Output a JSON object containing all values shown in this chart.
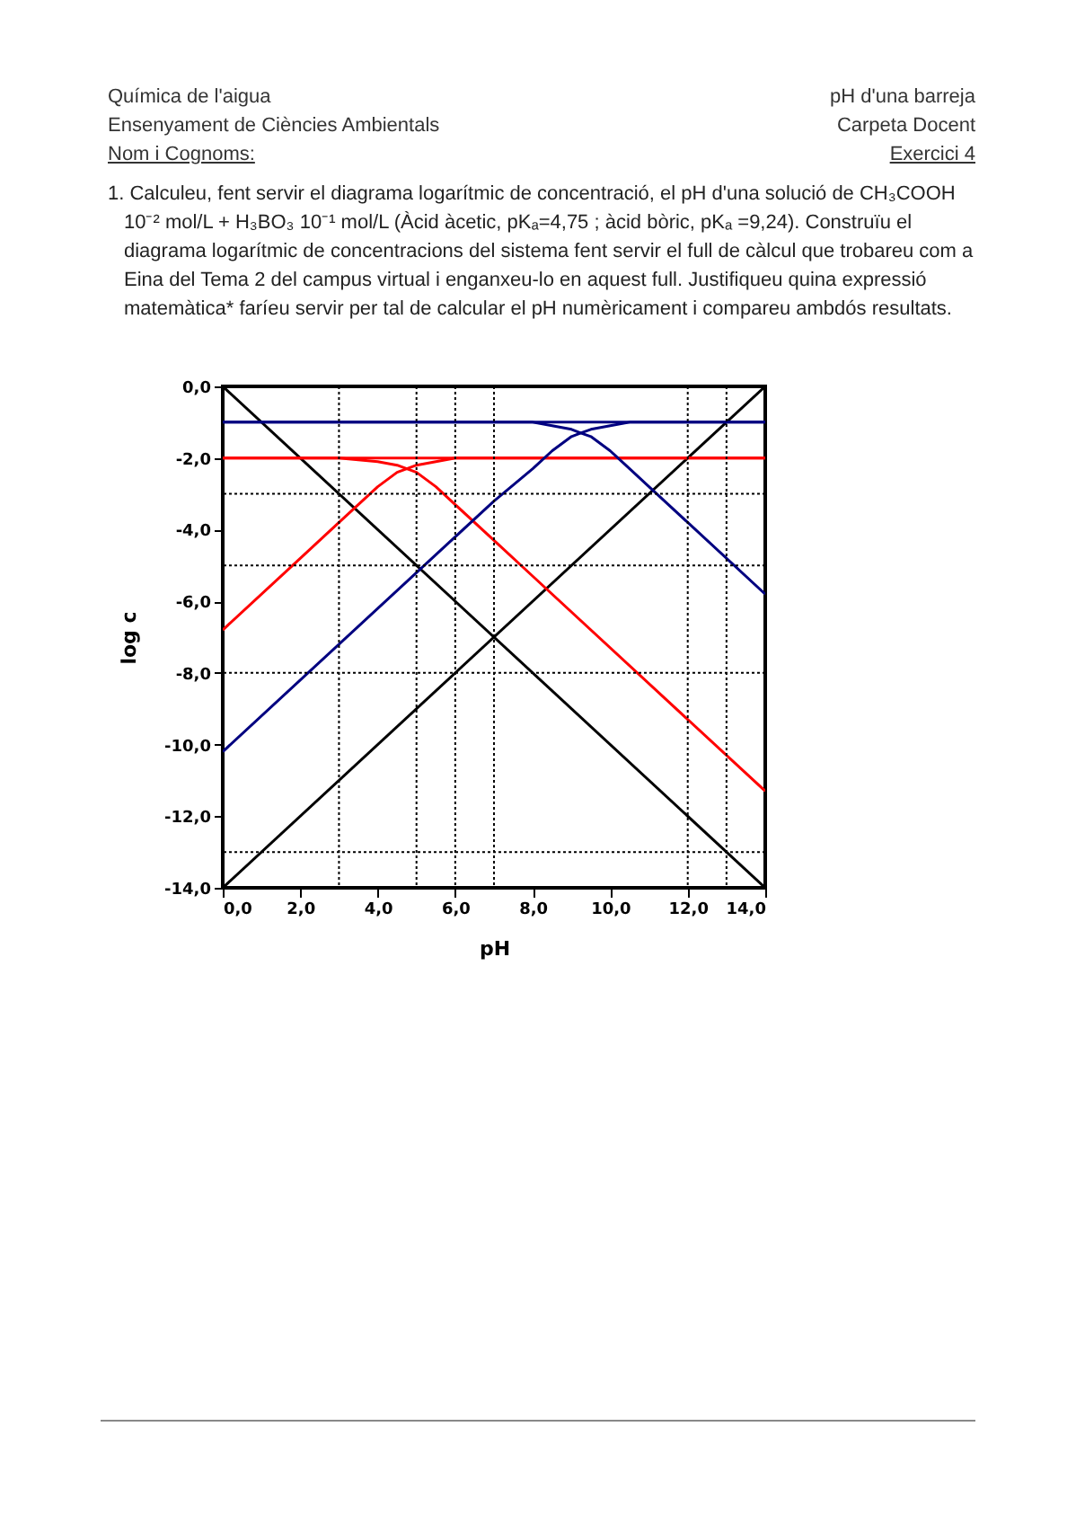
{
  "chart_data": {
    "type": "line",
    "xlabel": "pH",
    "ylabel": "log c",
    "line_style": "solid",
    "annotations": [
      "Química de l'aigua",
      "Ensenyament de Ciències Ambientals",
      "Nom i Cognoms:",
      "pH d'una barreja",
      "Carpeta Docent",
      "Exercici 4",
      "1. Calculeu, fent servir el diagrama logarítmic de concentració, el pH d'una solució de CH₃COOH 10⁻² mol/L + H₃BO₃ 10⁻¹ mol/L (Àcid àcetic, pKₐ=4,75 ; àcid bòric, pKₐ =9,24). Construïu el diagrama logarítmic de concentracions del sistema fent servir el full de càlcul que trobareu com a Eina del Tema 2 del campus virtual i enganxeu-lo en aquest full. Justifiqueu quina expressió matemàtica* faríeu servir per tal de calcular el pH numèricament i compareu ambdós resultats."
    ],
    "xlim": [
      0,
      14
    ],
    "ylim": [
      -14,
      0
    ],
    "xticks": [
      {
        "value": 0,
        "label": "0,0"
      },
      {
        "value": 2,
        "label": "2,0"
      },
      {
        "value": 4,
        "label": "4,0"
      },
      {
        "value": 6,
        "label": "6,0"
      },
      {
        "value": 8,
        "label": "8,0"
      },
      {
        "value": 10,
        "label": "10,0"
      },
      {
        "value": 12,
        "label": "12,0"
      },
      {
        "value": 14,
        "label": "14,0"
      }
    ],
    "yticks": [
      {
        "value": -14,
        "label": "-14,0"
      },
      {
        "value": -12,
        "label": "-12,0"
      },
      {
        "value": -10,
        "label": "-10,0"
      },
      {
        "value": -8,
        "label": "-8,0"
      },
      {
        "value": -6,
        "label": "-6,0"
      },
      {
        "value": -4,
        "label": "-4,0"
      },
      {
        "value": -2,
        "label": "-2,0"
      },
      {
        "value": 0,
        "label": "0,0"
      }
    ],
    "ref_lines": [
      {
        "axis": "x",
        "value": 3,
        "color": "#000000",
        "line_style": "dotted"
      },
      {
        "axis": "x",
        "value": 5,
        "color": "#000000",
        "line_style": "dotted"
      },
      {
        "axis": "x",
        "value": 6,
        "color": "#000000",
        "line_style": "dotted"
      },
      {
        "axis": "x",
        "value": 7,
        "color": "#000000",
        "line_style": "dotted"
      },
      {
        "axis": "x",
        "value": 12,
        "color": "#000000",
        "line_style": "dotted"
      },
      {
        "axis": "x",
        "value": 13,
        "color": "#000000",
        "line_style": "dotted"
      },
      {
        "axis": "y",
        "value": -3,
        "color": "#000000",
        "line_style": "dotted"
      },
      {
        "axis": "y",
        "value": -5,
        "color": "#000000",
        "line_style": "dotted"
      },
      {
        "axis": "y",
        "value": -8,
        "color": "#000000",
        "line_style": "dotted"
      },
      {
        "axis": "y",
        "value": -13,
        "color": "#000000",
        "line_style": "dotted"
      }
    ],
    "series": [
      {
        "color": "#000000",
        "x": [
          0,
          14
        ],
        "values": [
          0,
          -14
        ]
      },
      {
        "color": "#000000",
        "x": [
          0,
          14
        ],
        "values": [
          -14,
          0
        ]
      },
      {
        "color": "#ff0000",
        "x": [
          0,
          14
        ],
        "values": [
          -2,
          -2
        ]
      },
      {
        "color": "#000080",
        "x": [
          0,
          14
        ],
        "values": [
          -1,
          -1
        ]
      },
      {
        "color": "#ff0000",
        "x": [
          0,
          3,
          4,
          4.5,
          4.75,
          5,
          5.5,
          6,
          7,
          8,
          14
        ],
        "values": [
          -2,
          -2,
          -2.1,
          -2.2,
          -2.3,
          -2.4,
          -2.8,
          -3.3,
          -4.3,
          -5.3,
          -11.3
        ]
      },
      {
        "color": "#ff0000",
        "x": [
          0,
          2,
          3,
          4,
          4.5,
          4.75,
          5,
          5.5,
          6,
          14
        ],
        "values": [
          -6.8,
          -4.8,
          -3.8,
          -2.8,
          -2.4,
          -2.3,
          -2.2,
          -2.1,
          -2,
          -2
        ]
      },
      {
        "color": "#000080",
        "x": [
          0,
          8,
          8.5,
          9,
          9.24,
          9.5,
          10,
          10.5,
          11,
          12,
          14
        ],
        "values": [
          -1,
          -1,
          -1.1,
          -1.2,
          -1.3,
          -1.4,
          -1.8,
          -2.3,
          -2.8,
          -3.8,
          -5.8
        ]
      },
      {
        "color": "#000080",
        "x": [
          0,
          6,
          7,
          8,
          8.5,
          9,
          9.24,
          9.5,
          10,
          10.5,
          14
        ],
        "values": [
          -10.2,
          -4.2,
          -3.2,
          -2.3,
          -1.8,
          -1.4,
          -1.3,
          -1.2,
          -1.1,
          -1,
          -1
        ]
      }
    ]
  }
}
